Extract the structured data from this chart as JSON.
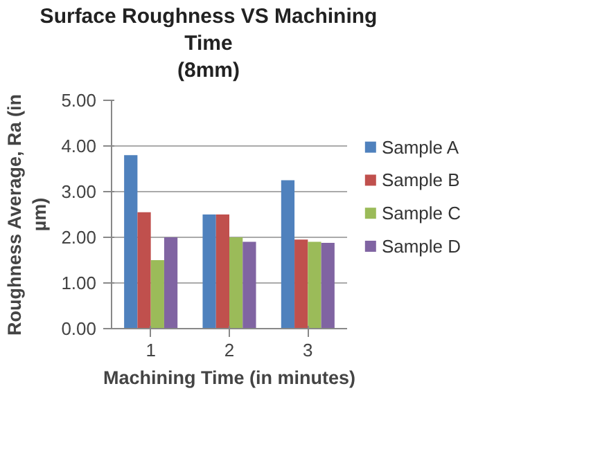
{
  "chart_data": {
    "type": "bar",
    "title": "Surface Roughness VS Machining\nTime\n(8mm)",
    "xlabel": "Machining Time (in minutes)",
    "ylabel": "Roughness Average, Ra (in\nµm)",
    "categories": [
      "1",
      "2",
      "3"
    ],
    "series": [
      {
        "name": "Sample A",
        "color": "#4f81bd",
        "values": [
          3.8,
          2.5,
          3.25
        ]
      },
      {
        "name": "Sample B",
        "color": "#c0504d",
        "values": [
          2.55,
          2.5,
          1.95
        ]
      },
      {
        "name": "Sample C",
        "color": "#9bbb59",
        "values": [
          1.5,
          2.0,
          1.9
        ]
      },
      {
        "name": "Sample D",
        "color": "#8064a2",
        "values": [
          2.0,
          1.9,
          1.88
        ]
      }
    ],
    "ylim": [
      0,
      5
    ],
    "yticks": [
      {
        "value": 0,
        "label": "0.00"
      },
      {
        "value": 1,
        "label": "1.00"
      },
      {
        "value": 2,
        "label": "2.00"
      },
      {
        "value": 3,
        "label": "3.00"
      },
      {
        "value": 4,
        "label": "4.00"
      },
      {
        "value": 5,
        "label": "5.00"
      }
    ],
    "grid": "y",
    "legend": "right"
  }
}
